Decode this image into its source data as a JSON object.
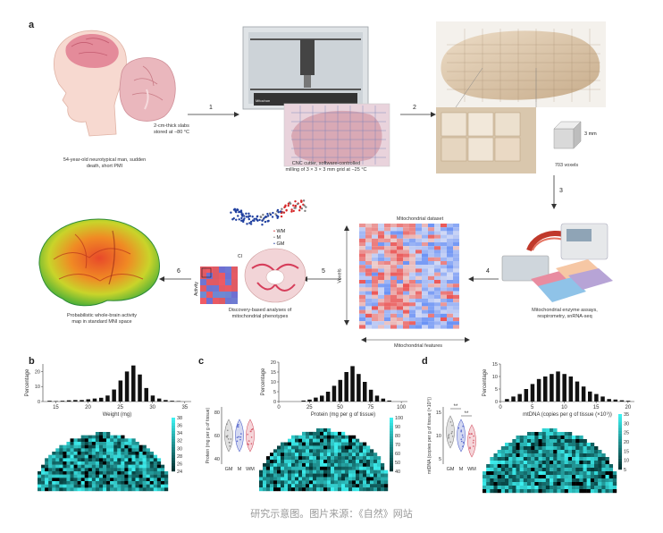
{
  "panel_labels": {
    "a": "a",
    "b": "b",
    "c": "c",
    "d": "d"
  },
  "panel_a": {
    "captions": {
      "slabs": "2-cm-thick slabs\nstored at −80 °C",
      "donor": "54-year-old neurotypical man, sudden\ndeath, short PMI",
      "cnc": "CNC cutter, software-controlled\nmilling of 3 × 3 × 3 mm grid at −25 °C",
      "cube": "3 mm",
      "voxels": "703 voxels",
      "assays": "Mitochondrial enzyme assays,\nrespirometry, snRNA-seq",
      "dataset": "Mitochondrial dataset",
      "features": "Mitochondrial features",
      "voxels_axis": "Voxels",
      "analysis": "Discovery-based analyses of\nmitochondrial phenotypes",
      "map": "Probabilistic whole-brain activity\nmap in standard MNI space",
      "ci": "CI",
      "activity": "Activity",
      "machine_brand": "Mitochon"
    },
    "steps": [
      "1",
      "2",
      "3",
      "4",
      "5",
      "6"
    ],
    "legend": [
      {
        "label": "WM",
        "color": "#d62728"
      },
      {
        "label": "M",
        "color": "#7f7f7f"
      },
      {
        "label": "GM",
        "color": "#1f3f9f"
      }
    ]
  },
  "chart_data": [
    {
      "type": "bar",
      "panel": "b",
      "ylabel": "Percentage",
      "yticks": [
        "20",
        "10",
        "0"
      ],
      "xlabel": "Weight (mg)",
      "xticks": [
        "15",
        "20",
        "25",
        "30",
        "35"
      ],
      "x": [
        14,
        15,
        16,
        17,
        18,
        19,
        20,
        21,
        22,
        23,
        24,
        25,
        26,
        27,
        28,
        29,
        30,
        31,
        32,
        33,
        34
      ],
      "values": [
        0.5,
        0.3,
        0.5,
        0.8,
        1,
        1,
        1.5,
        2,
        2.5,
        4,
        8,
        14,
        20,
        24,
        18,
        9,
        4,
        2,
        1,
        0.5,
        0.3
      ],
      "colorbar_ticks": [
        "38",
        "36",
        "34",
        "32",
        "30",
        "28",
        "26",
        "24"
      ]
    },
    {
      "type": "bar",
      "panel": "c",
      "ylabel": "Percentage",
      "yticks": [
        "20",
        "15",
        "10",
        "5",
        "0"
      ],
      "xlabel": "Protein (mg per g of tissue)",
      "xticks": [
        "0",
        "25",
        "50",
        "75",
        "100"
      ],
      "x": [
        20,
        25,
        30,
        35,
        40,
        45,
        50,
        55,
        60,
        65,
        70,
        75,
        80,
        85,
        90
      ],
      "values": [
        0.5,
        1,
        2,
        3,
        5,
        8,
        11,
        15,
        18,
        14,
        10,
        6,
        3,
        1.5,
        0.5
      ],
      "colorbar_ticks": [
        "100",
        "90",
        "80",
        "70",
        "60",
        "50",
        "40"
      ],
      "violin": {
        "ylabel": "Protein (mg per g of tissue)",
        "yticks": [
          "80",
          "60",
          "40"
        ],
        "groups": [
          "GM",
          "M",
          "WM"
        ]
      }
    },
    {
      "type": "bar",
      "panel": "d",
      "ylabel": "Percentage",
      "yticks": [
        "15",
        "10",
        "5",
        "0"
      ],
      "xlabel": "mtDNA (copies per g of tissue (×10⁹))",
      "xticks": [
        "0",
        "5",
        "10",
        "15",
        "20"
      ],
      "x": [
        1,
        2,
        3,
        4,
        5,
        6,
        7,
        8,
        9,
        10,
        11,
        12,
        13,
        14,
        15,
        16,
        17,
        18,
        19,
        20
      ],
      "values": [
        1,
        2,
        3,
        5,
        7,
        9,
        10,
        11,
        12,
        11,
        10,
        8,
        6,
        4,
        3,
        2,
        1,
        0.8,
        0.5,
        0.3
      ],
      "colorbar_ticks": [
        "35",
        "30",
        "25",
        "20",
        "15",
        "10",
        "5"
      ],
      "violin": {
        "ylabel": "mtDNA (copies per g of tissue (×10⁹))",
        "yticks": [
          "15",
          "10",
          "5"
        ],
        "groups": [
          "GM",
          "M",
          "WM"
        ],
        "significance": [
          "**",
          "**"
        ]
      }
    }
  ],
  "footer": "研究示意图。图片来源：《自然》网站"
}
